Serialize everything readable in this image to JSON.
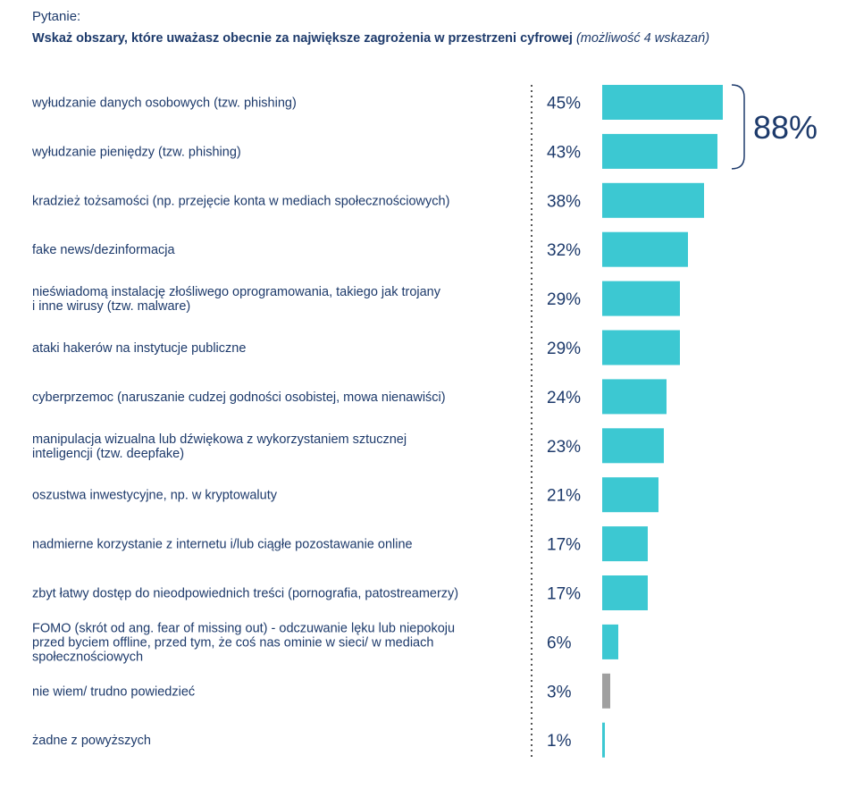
{
  "header": {
    "label": "Pytanie:",
    "question": "Wskaż obszary, które uważasz obecnie za największe zagrożenia w przestrzeni cyfrowej",
    "note": "(możliwość 4 wskazań)"
  },
  "chart_data": {
    "type": "bar",
    "orientation": "horizontal",
    "title": "Wskaż obszary, które uważasz obecnie za największe zagrożenia w przestrzeni cyfrowej",
    "categories": [
      [
        "wyłudzanie danych osobowych (tzw. phishing)"
      ],
      [
        "wyłudzanie pieniędzy (tzw. phishing)"
      ],
      [
        "kradzież tożsamości (np. przejęcie konta w mediach społecznościowych)"
      ],
      [
        "fake news/dezinformacja"
      ],
      [
        "nieświadomą instalację złośliwego oprogramowania, takiego jak trojany",
        "i inne wirusy (tzw. malware)"
      ],
      [
        "ataki hakerów na instytucje publiczne"
      ],
      [
        "cyberprzemoc (naruszanie cudzej godności osobistej, mowa nienawiści)"
      ],
      [
        "manipulacja wizualna lub dźwiękowa z wykorzystaniem sztucznej",
        "inteligencji (tzw. deepfake)"
      ],
      [
        "oszustwa inwestycyjne, np. w kryptowaluty"
      ],
      [
        "nadmierne korzystanie z internetu i/lub ciągłe pozostawanie online"
      ],
      [
        "zbyt łatwy dostęp do nieodpowiednich treści (pornografia, patostreamerzy)"
      ],
      [
        "FOMO (skrót od ang. fear of missing out) - odczuwanie lęku lub niepokoju",
        "przed byciem offline, przed tym, że coś nas ominie w sieci/ w mediach",
        "społecznościowych"
      ],
      [
        "nie wiem/ trudno powiedzieć"
      ],
      [
        "żadne z powyższych"
      ]
    ],
    "values": [
      45,
      43,
      38,
      32,
      29,
      29,
      24,
      23,
      21,
      17,
      17,
      6,
      3,
      1
    ],
    "value_labels": [
      "45%",
      "43%",
      "38%",
      "32%",
      "29%",
      "29%",
      "24%",
      "23%",
      "21%",
      "17%",
      "17%",
      "6%",
      "3%",
      "1%"
    ],
    "bar_colors": [
      "#3cc8d2",
      "#3cc8d2",
      "#3cc8d2",
      "#3cc8d2",
      "#3cc8d2",
      "#3cc8d2",
      "#3cc8d2",
      "#3cc8d2",
      "#3cc8d2",
      "#3cc8d2",
      "#3cc8d2",
      "#3cc8d2",
      "#a0a0a0",
      "#3cc8d2"
    ],
    "xlim": [
      0,
      100
    ],
    "bracket": {
      "covers": [
        0,
        1
      ],
      "label": "88%"
    },
    "grid": false
  },
  "colors": {
    "text": "#1d3a6b",
    "bar": "#3cc8d2",
    "neutral_bar": "#a0a0a0",
    "divider": "#555555"
  }
}
